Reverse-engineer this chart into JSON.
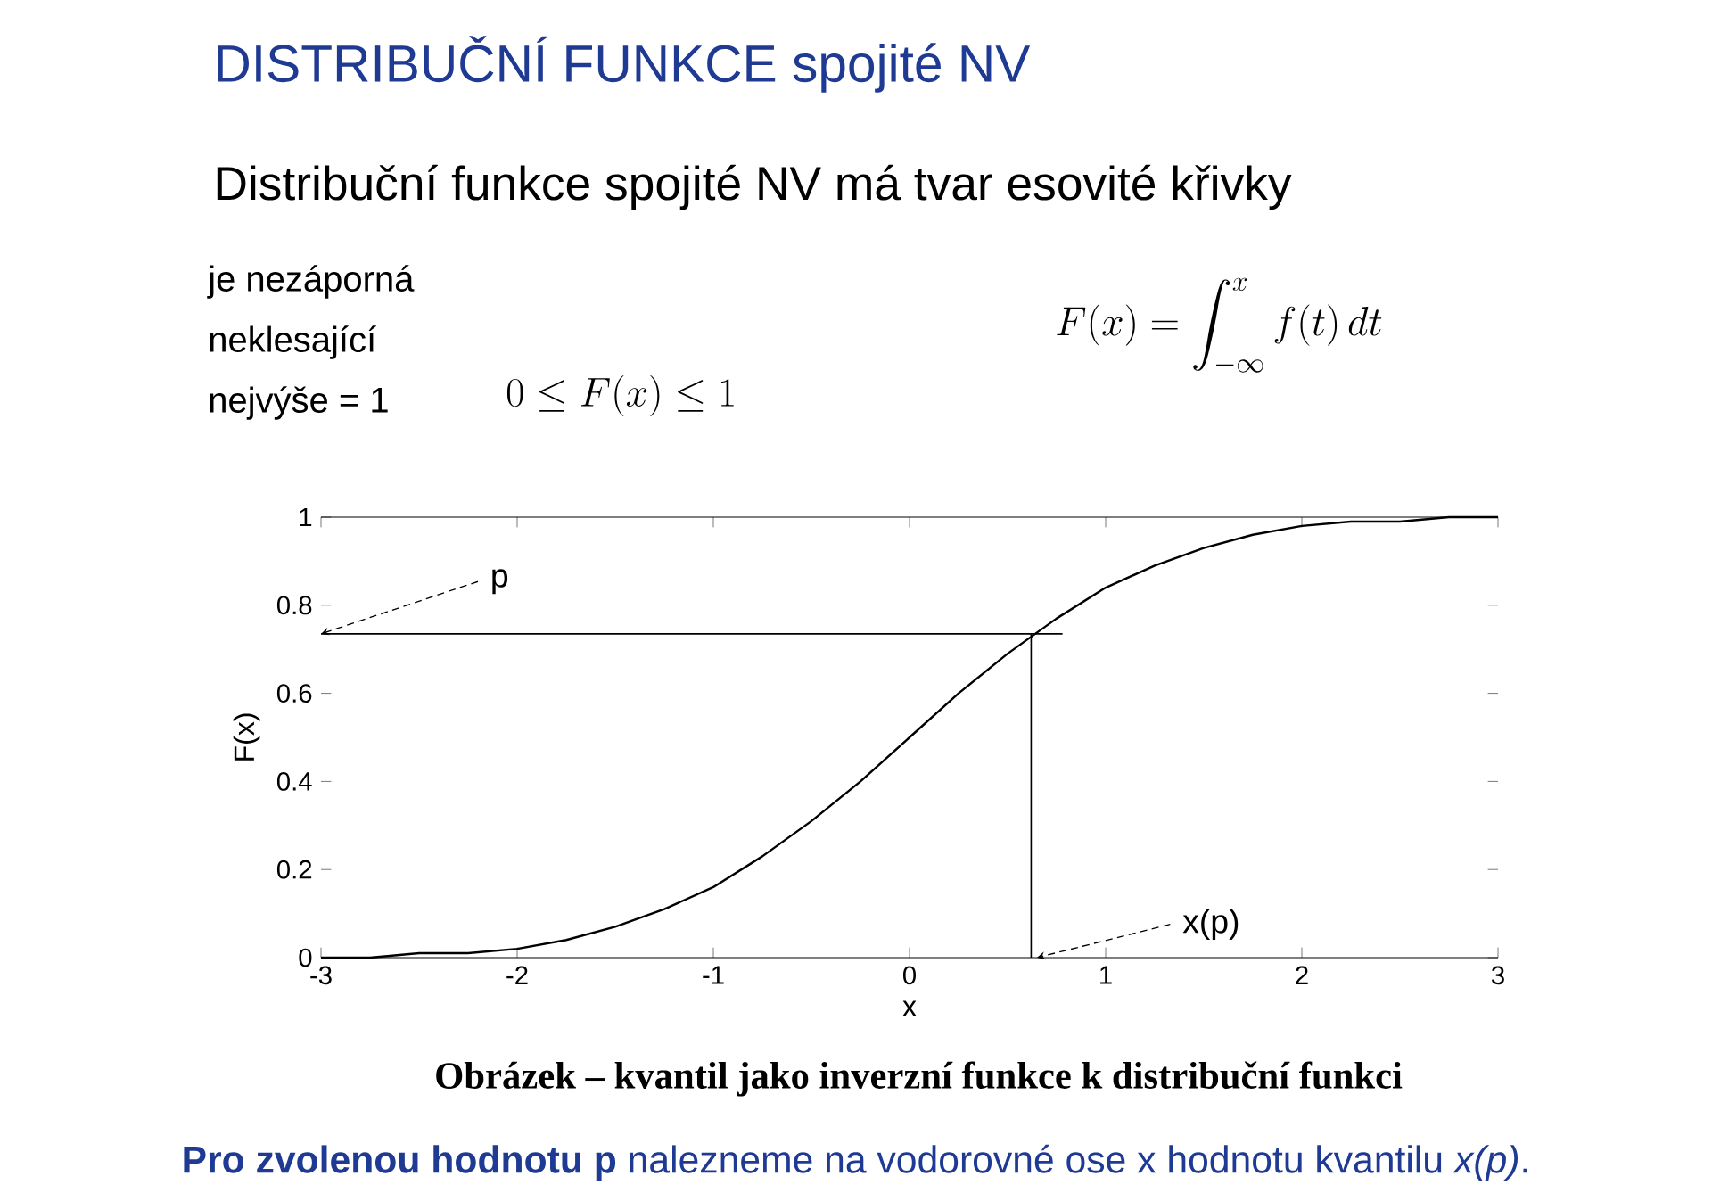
{
  "chart_data": {
    "type": "line",
    "title": "DISTRIBUČNÍ FUNKCE spojité NV",
    "subtitle": "Distribuční funkce spojité NV má tvar esovité křivky",
    "xlabel": "x",
    "ylabel": "F(x)",
    "x": [
      -3,
      -2.75,
      -2.5,
      -2.25,
      -2,
      -1.75,
      -1.5,
      -1.25,
      -1,
      -0.75,
      -0.5,
      -0.25,
      0,
      0.25,
      0.5,
      0.75,
      1,
      1.25,
      1.5,
      1.75,
      2,
      2.25,
      2.5,
      2.75,
      3
    ],
    "series": [
      {
        "color": "#000000",
        "values": [
          0.0,
          0.0,
          0.01,
          0.01,
          0.02,
          0.04,
          0.07,
          0.11,
          0.16,
          0.23,
          0.31,
          0.4,
          0.5,
          0.6,
          0.69,
          0.77,
          0.84,
          0.89,
          0.93,
          0.96,
          0.98,
          0.99,
          0.99,
          1.0,
          1.0
        ]
      },
      {
        "color": "#000000",
        "x": [
          -3,
          0.78
        ],
        "values": [
          0.735,
          0.735
        ]
      },
      {
        "color": "#000000",
        "x": [
          0.62,
          0.62
        ],
        "values": [
          0,
          0.735
        ]
      }
    ],
    "xlim": [
      -3,
      3
    ],
    "ylim": [
      0,
      1
    ],
    "xticks": [
      -3,
      -2,
      -1,
      0,
      1,
      2,
      3
    ],
    "yticks": [
      0,
      0.2,
      0.4,
      0.6,
      0.8,
      1
    ],
    "annotations": [
      "je nezáporná",
      "neklesající",
      "nejvýše = 1",
      "0 \\le F(x) \\le 1",
      "F(x) = \\int_{-\\infty}^{x} f(t)\\,dt",
      {
        "text": "p",
        "x": -3,
        "y": 0.735
      },
      {
        "text": "x(p)",
        "x": 0.65,
        "y": 0
      },
      "Obrázek – kvantil jako inverzní funkce k distribuční funkci",
      "**Pro zvolenou hodnotu p** nalezneme na vodorovné ose x hodnotu kvantilu *x(p)*."
    ]
  }
}
